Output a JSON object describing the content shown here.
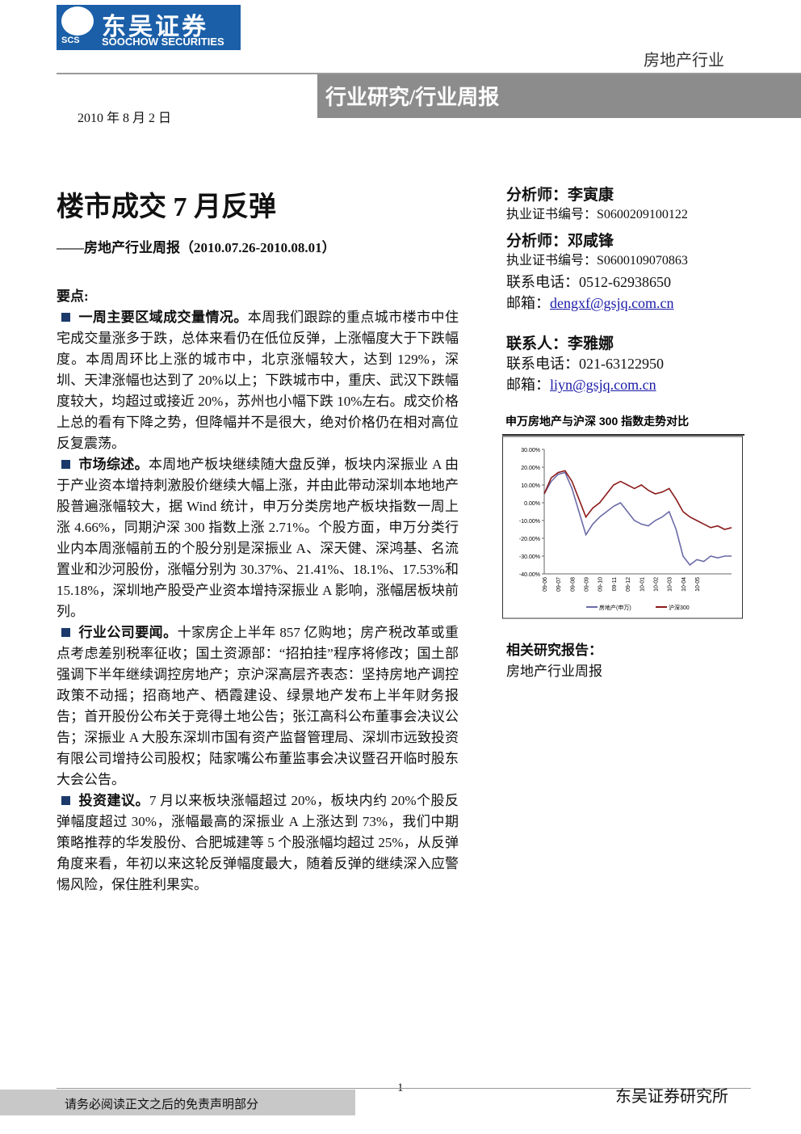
{
  "header": {
    "logo_cn": "东吴证券",
    "logo_en": "SOOCHOW SECURITIES",
    "logo_abbr": "SCS",
    "sector": "房地产行业",
    "banner": "行业研究/行业周报",
    "date": "2010 年 8 月 2 日"
  },
  "title": "楼市成交 7 月反弹",
  "subtitle": "——房地产行业周报（2010.07.26-2010.08.01）",
  "key_points": {
    "heading": "要点:",
    "items": [
      {
        "lead": "一周主要区域成交量情况。",
        "text": "本周我们跟踪的重点城市楼市中住宅成交量涨多于跌，总体来看仍在低位反弹，上涨幅度大于下跌幅度。本周周环比上涨的城市中，北京涨幅较大，达到 129%，深圳、天津涨幅也达到了 20%以上；下跌城市中，重庆、武汉下跌幅度较大，均超过或接近 20%，苏州也小幅下跌 10%左右。成交价格上总的看有下降之势，但降幅并不是很大，绝对价格仍在相对高位反复震荡。"
      },
      {
        "lead": "市场综述。",
        "text": "本周地产板块继续随大盘反弹，板块内深振业 A 由于产业资本增持刺激股价继续大幅上涨，并由此带动深圳本地地产股普遍涨幅较大，据 Wind 统计，申万分类房地产板块指数一周上涨 4.66%，同期沪深 300 指数上涨 2.71%。个股方面，申万分类行业内本周涨幅前五的个股分别是深振业 A、深天健、深鸿基、名流置业和沙河股份，涨幅分别为 30.37%、21.41%、18.1%、17.53%和 15.18%，深圳地产股受产业资本增持深振业 A 影响，涨幅居板块前列。"
      },
      {
        "lead": "行业公司要闻。",
        "text": "十家房企上半年 857 亿购地；房产税改革或重点考虑差别税率征收；国土资源部：“招拍挂”程序将修改；国土部强调下半年继续调控房地产；京沪深高层齐表态：坚持房地产调控政策不动摇；招商地产、栖霞建设、绿景地产发布上半年财务报告；首开股份公布关于竞得土地公告；张江高科公布董事会决议公告；深振业 A 大股东深圳市国有资产监督管理局、深圳市远致投资有限公司增持公司股权；陆家嘴公布董监事会决议暨召开临时股东大会公告。"
      },
      {
        "lead": "投资建议。",
        "text": "7 月以来板块涨幅超过 20%，板块内约 20%个股反弹幅度超过 30%，涨幅最高的深振业 A 上涨达到 73%，我们中期策略推荐的华发股份、合肥城建等 5 个股涨幅均超过 25%，从反弹角度来看，年初以来这轮反弹幅度最大，随着反弹的继续深入应警惕风险，保住胜利果实。"
      }
    ]
  },
  "analysts": [
    {
      "role": "分析师：",
      "name": "李寅康",
      "cert_label": "执业证书编号：",
      "cert": "S0600209100122"
    },
    {
      "role": "分析师：",
      "name": "邓咸锋",
      "cert_label": "执业证书编号：",
      "cert": "S0600109070863",
      "phone_label": "联系电话：",
      "phone": "0512-62938650",
      "email_label": "邮箱：",
      "email": "dengxf@gsjq.com.cn"
    },
    {
      "role": "联系人：",
      "name": "李雅娜",
      "phone_label": "联系电话：",
      "phone": "021-63122950",
      "email_label": "邮箱：",
      "email": "liyn@gsjq.com.cn"
    }
  ],
  "chart_data": {
    "type": "line",
    "title": "申万房地产与沪深 300 指数走势对比",
    "categories": [
      "09-06",
      null,
      "09-07",
      null,
      "09-08",
      null,
      "09-09",
      null,
      "09-10",
      null,
      "09-11",
      null,
      "09-12",
      null,
      "10-01",
      null,
      "10-02",
      null,
      "10-03",
      null,
      "10-04",
      null,
      "10-05",
      null,
      null,
      null,
      null,
      null
    ],
    "series": [
      {
        "name": "房地产(申万)",
        "color": "#6b6ba8",
        "values": [
          5,
          12,
          16,
          17,
          8,
          -5,
          -18,
          -12,
          -8,
          -5,
          -2,
          0,
          -5,
          -10,
          -12,
          -13,
          -10,
          -8,
          -5,
          -15,
          -30,
          -35,
          -32,
          -33,
          -30,
          -31,
          -30,
          -30
        ]
      },
      {
        "name": "沪深300",
        "color": "#8b1a1a",
        "values": [
          5,
          14,
          17,
          18,
          12,
          2,
          -8,
          -3,
          0,
          5,
          10,
          12,
          10,
          8,
          10,
          7,
          5,
          6,
          8,
          2,
          -5,
          -8,
          -10,
          -12,
          -14,
          -13,
          -15,
          -14
        ]
      }
    ],
    "ylim": [
      -40,
      30
    ],
    "yticks": [
      {
        "value": 30,
        "label": "30.00%"
      },
      {
        "value": 20,
        "label": "20.00%"
      },
      {
        "value": 10,
        "label": "10.00%"
      },
      {
        "value": 0,
        "label": "0.00%"
      },
      {
        "value": -10,
        "label": "-10.00%"
      },
      {
        "value": -20,
        "label": "-20.00%"
      },
      {
        "value": -30,
        "label": "-30.00%"
      },
      {
        "value": -40,
        "label": "-40.00%"
      }
    ],
    "legend": "bottom"
  },
  "related": {
    "heading": "相关研究报告：",
    "items": [
      "房地产行业周报"
    ]
  },
  "footer": {
    "disclaimer": "请务必阅读正文之后的免责声明部分",
    "page": "1",
    "org": "东吴证券研究所"
  }
}
